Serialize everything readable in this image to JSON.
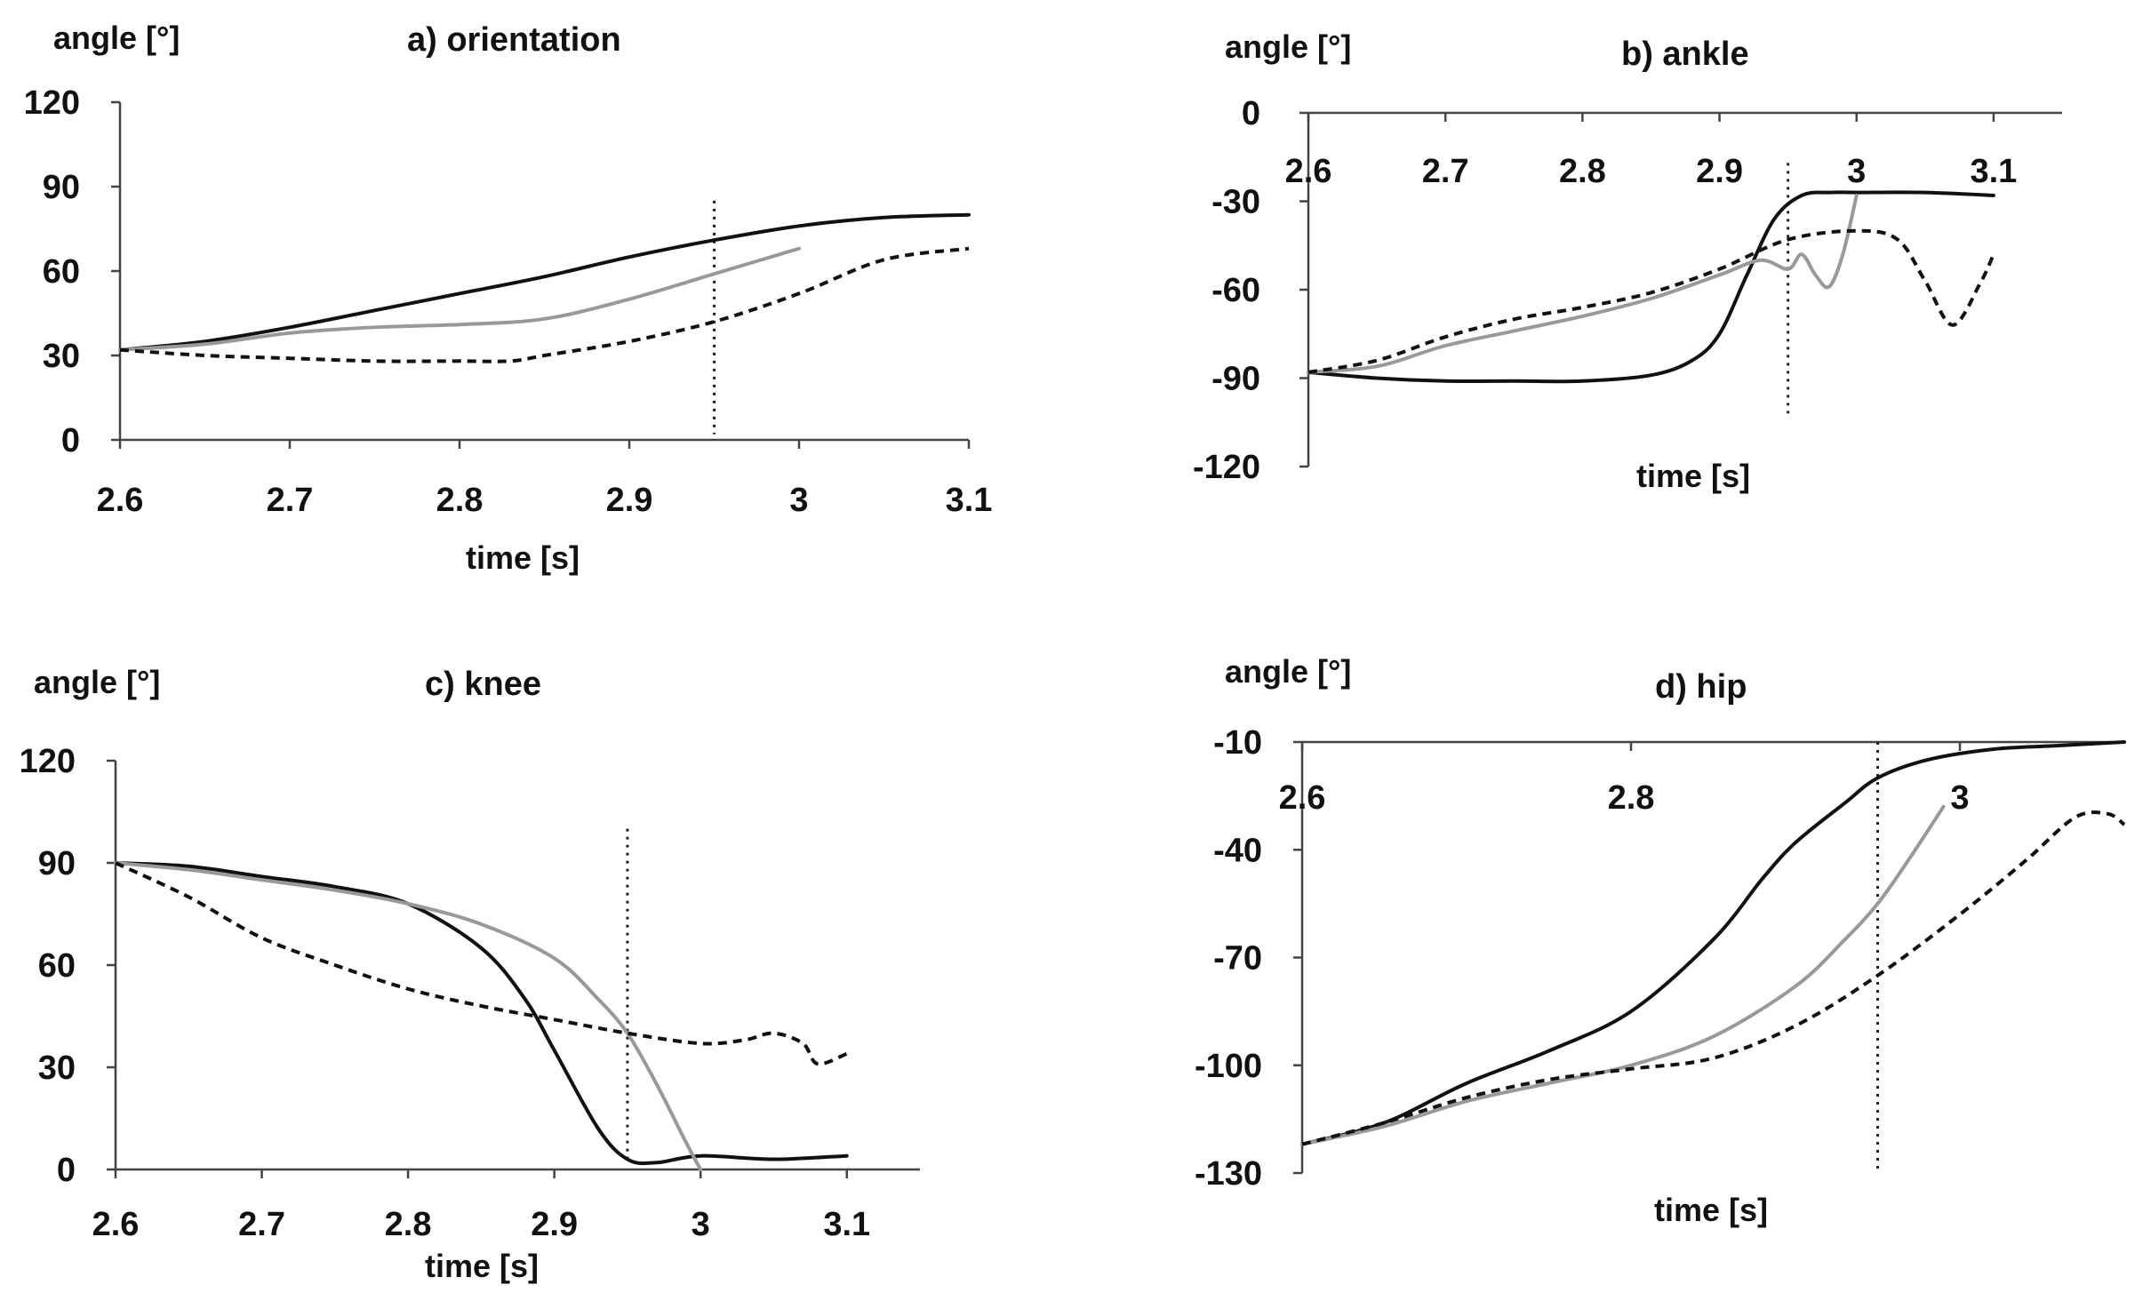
{
  "colors": {
    "black_series": "#111111",
    "dashed_series": "#111111",
    "gray_series": "#999999",
    "axis": "#444444",
    "marker": "#222222"
  },
  "chart_data": [
    {
      "id": "a",
      "type": "line",
      "title": "a) orientation",
      "ylabel": "angle [°]",
      "xlabel": "time [s]",
      "xlim": [
        2.6,
        3.1
      ],
      "ylim": [
        0,
        120
      ],
      "xticks": [
        2.6,
        2.7,
        2.8,
        2.9,
        3,
        3.1
      ],
      "xtick_labels": [
        "2.6",
        "2.7",
        "2.8",
        "2.9",
        "3",
        "3.1"
      ],
      "yticks": [
        0,
        30,
        60,
        90,
        120
      ],
      "ytick_labels": [
        "0",
        "30",
        "60",
        "90",
        "120"
      ],
      "xaxis_at_y": 0,
      "marker_x": 2.95,
      "series": [
        {
          "name": "solid-black",
          "style": "solid",
          "color": "#111111",
          "x": [
            2.6,
            2.65,
            2.7,
            2.75,
            2.8,
            2.85,
            2.9,
            2.95,
            3.0,
            3.05,
            3.1
          ],
          "y": [
            32,
            35,
            40,
            46,
            52,
            58,
            65,
            71,
            76,
            79,
            80
          ]
        },
        {
          "name": "solid-gray",
          "style": "solid",
          "color": "#999999",
          "x": [
            2.6,
            2.65,
            2.7,
            2.75,
            2.8,
            2.85,
            2.9,
            2.95,
            3.0
          ],
          "y": [
            32,
            34,
            38,
            40,
            41,
            43,
            50,
            59,
            68
          ]
        },
        {
          "name": "dashed-black",
          "style": "dashed",
          "color": "#111111",
          "x": [
            2.6,
            2.65,
            2.7,
            2.75,
            2.8,
            2.83,
            2.85,
            2.9,
            2.95,
            3.0,
            3.05,
            3.1
          ],
          "y": [
            32,
            30,
            29,
            28,
            28,
            28,
            30,
            35,
            42,
            52,
            64,
            68
          ]
        }
      ]
    },
    {
      "id": "b",
      "type": "line",
      "title": "b) ankle",
      "ylabel": "angle [°]",
      "xlabel": "time [s]",
      "xlim": [
        2.6,
        3.15
      ],
      "ylim": [
        -120,
        0
      ],
      "xticks": [
        2.6,
        2.7,
        2.8,
        2.9,
        3,
        3.1
      ],
      "xtick_labels": [
        "2.6",
        "2.7",
        "2.8",
        "2.9",
        "3",
        "3.1"
      ],
      "yticks": [
        -120,
        -90,
        -60,
        -30,
        0
      ],
      "ytick_labels": [
        "-120",
        "-90",
        "-60",
        "-30",
        "0"
      ],
      "xaxis_at_y": 0,
      "marker_x": 2.95,
      "series": [
        {
          "name": "solid-black",
          "style": "solid",
          "color": "#111111",
          "x": [
            2.6,
            2.65,
            2.7,
            2.75,
            2.8,
            2.85,
            2.88,
            2.9,
            2.92,
            2.94,
            2.96,
            2.98,
            3.0,
            3.05,
            3.1
          ],
          "y": [
            -88,
            -90,
            -91,
            -91,
            -91,
            -89,
            -84,
            -75,
            -55,
            -36,
            -28,
            -27,
            -27,
            -27,
            -28
          ]
        },
        {
          "name": "solid-gray",
          "style": "solid",
          "color": "#999999",
          "x": [
            2.6,
            2.65,
            2.7,
            2.75,
            2.8,
            2.85,
            2.9,
            2.93,
            2.95,
            2.96,
            2.97,
            2.98,
            2.99,
            3.0
          ],
          "y": [
            -88,
            -86,
            -79,
            -74,
            -69,
            -63,
            -55,
            -50,
            -53,
            -48,
            -55,
            -59,
            -48,
            -28
          ]
        },
        {
          "name": "dashed-black",
          "style": "dashed",
          "color": "#111111",
          "x": [
            2.6,
            2.65,
            2.7,
            2.75,
            2.8,
            2.85,
            2.9,
            2.95,
            3.0,
            3.03,
            3.05,
            3.07,
            3.09,
            3.1
          ],
          "y": [
            -88,
            -84,
            -76,
            -70,
            -66,
            -61,
            -53,
            -43,
            -40,
            -43,
            -57,
            -72,
            -58,
            -48
          ]
        }
      ]
    },
    {
      "id": "c",
      "type": "line",
      "title": "c) knee",
      "ylabel": "angle [°]",
      "xlabel": "time [s]",
      "xlim": [
        2.6,
        3.15
      ],
      "ylim": [
        0,
        120
      ],
      "xticks": [
        2.6,
        2.7,
        2.8,
        2.9,
        3,
        3.1
      ],
      "xtick_labels": [
        "2.6",
        "2.7",
        "2.8",
        "2.9",
        "3",
        "3.1"
      ],
      "yticks": [
        0,
        30,
        60,
        90,
        120
      ],
      "ytick_labels": [
        "0",
        "30",
        "60",
        "90",
        "120"
      ],
      "xaxis_at_y": 0,
      "marker_x": 2.95,
      "series": [
        {
          "name": "solid-black",
          "style": "solid",
          "color": "#111111",
          "x": [
            2.6,
            2.65,
            2.7,
            2.75,
            2.8,
            2.85,
            2.88,
            2.9,
            2.93,
            2.95,
            2.97,
            3.0,
            3.05,
            3.1
          ],
          "y": [
            90,
            89,
            86,
            83,
            78,
            65,
            50,
            35,
            12,
            3,
            2,
            4,
            3,
            4
          ]
        },
        {
          "name": "solid-gray",
          "style": "solid",
          "color": "#999999",
          "x": [
            2.6,
            2.65,
            2.7,
            2.75,
            2.8,
            2.85,
            2.9,
            2.93,
            2.95,
            2.97,
            2.99,
            3.0
          ],
          "y": [
            90,
            88,
            85,
            82,
            78,
            72,
            62,
            50,
            40,
            25,
            8,
            0
          ]
        },
        {
          "name": "dashed-black",
          "style": "dashed",
          "color": "#111111",
          "x": [
            2.6,
            2.65,
            2.7,
            2.75,
            2.8,
            2.85,
            2.9,
            2.95,
            3.0,
            3.03,
            3.05,
            3.07,
            3.08,
            3.1
          ],
          "y": [
            90,
            80,
            68,
            60,
            53,
            48,
            44,
            40,
            37,
            38,
            40,
            37,
            31,
            34
          ]
        }
      ]
    },
    {
      "id": "d",
      "type": "line",
      "title": "d) hip",
      "ylabel": "angle [°]",
      "xlabel": "time [s]",
      "xlim": [
        2.6,
        3.1
      ],
      "ylim": [
        -130,
        -10
      ],
      "xticks": [
        2.6,
        2.8,
        3
      ],
      "xtick_labels": [
        "2.6",
        "2.8",
        "3"
      ],
      "yticks": [
        -130,
        -100,
        -70,
        -40,
        -10
      ],
      "ytick_labels": [
        "-130",
        "-100",
        "-70",
        "-40",
        "-10"
      ],
      "xaxis_at_y": -10,
      "marker_x": 2.95,
      "series": [
        {
          "name": "solid-black",
          "style": "solid",
          "color": "#111111",
          "x": [
            2.6,
            2.65,
            2.7,
            2.75,
            2.8,
            2.85,
            2.88,
            2.9,
            2.93,
            2.95,
            2.98,
            3.02,
            3.06,
            3.1
          ],
          "y": [
            -122,
            -116,
            -105,
            -96,
            -85,
            -65,
            -48,
            -38,
            -27,
            -20,
            -15,
            -12,
            -11,
            -10
          ]
        },
        {
          "name": "solid-gray",
          "style": "solid",
          "color": "#999999",
          "x": [
            2.6,
            2.65,
            2.7,
            2.75,
            2.8,
            2.85,
            2.9,
            2.93,
            2.95,
            2.97,
            2.99
          ],
          "y": [
            -122,
            -117,
            -110,
            -105,
            -100,
            -92,
            -78,
            -65,
            -55,
            -42,
            -28
          ]
        },
        {
          "name": "dashed-black",
          "style": "dashed",
          "color": "#111111",
          "x": [
            2.6,
            2.65,
            2.7,
            2.75,
            2.8,
            2.85,
            2.9,
            2.95,
            3.0,
            3.04,
            3.07,
            3.09,
            3.1
          ],
          "y": [
            -122,
            -116,
            -109,
            -104,
            -101,
            -98,
            -89,
            -75,
            -58,
            -43,
            -31,
            -30,
            -33
          ]
        }
      ]
    }
  ]
}
